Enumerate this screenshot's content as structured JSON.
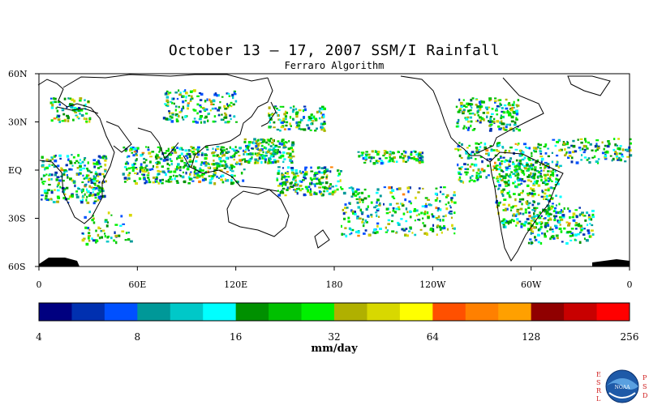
{
  "title": "October 13 – 17, 2007 SSM/I Rainfall",
  "subtitle": "Ferraro Algorithm",
  "map": {
    "lat_labels": [
      "60N",
      "30N",
      "EQ",
      "30S",
      "60S"
    ],
    "lon_labels": [
      "0",
      "60E",
      "120E",
      "180",
      "120W",
      "60W",
      "0"
    ],
    "land_color": "#000000",
    "ocean_color": "#ffffff"
  },
  "colorbar": {
    "colors": [
      "#000080",
      "#0030b0",
      "#0050ff",
      "#009898",
      "#00c8c8",
      "#00ffff",
      "#009000",
      "#00c000",
      "#00f000",
      "#b0b000",
      "#d8d800",
      "#ffff00",
      "#ff5000",
      "#ff8000",
      "#ffa000",
      "#900000",
      "#c80000",
      "#ff0000"
    ],
    "tick_labels": [
      "4",
      "8",
      "16",
      "32",
      "64",
      "128",
      "256"
    ],
    "units": "mm/day"
  },
  "logo": {
    "left_text": "ESRL",
    "right_text": "PSD",
    "center_text": "NOAA",
    "name": "noaa-logo-icon"
  }
}
